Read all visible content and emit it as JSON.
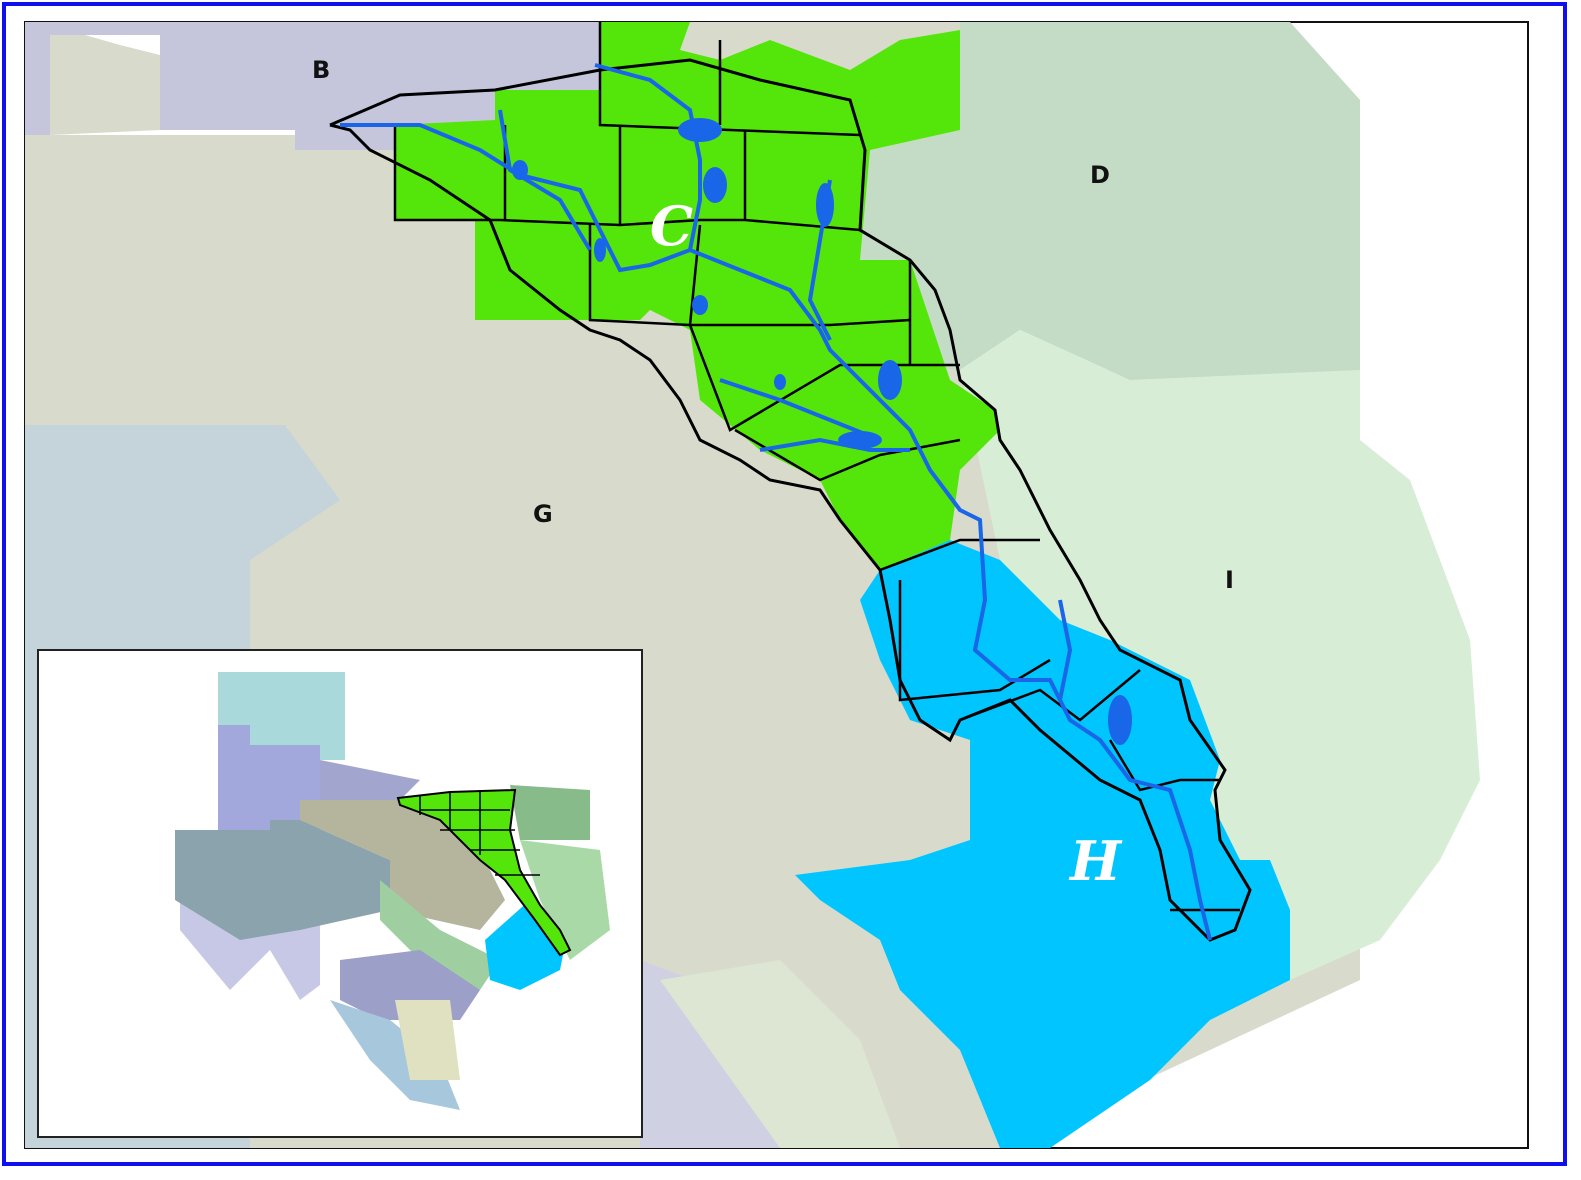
{
  "map": {
    "region_labels": {
      "B": "B",
      "C": "C",
      "D": "D",
      "G": "G",
      "H": "H",
      "I": "I"
    },
    "colors": {
      "frame_border": "#1010ee",
      "region_B": "#c5c6dc",
      "region_G": "#d8dbcc",
      "region_D": "#c4dcc6",
      "region_I": "#d8edd6",
      "region_C": "#54e60a",
      "region_H": "#00c5ff",
      "basin_outline": "#000000",
      "rivers": "#1a66e8"
    },
    "inset": {
      "description_visible": false
    }
  }
}
